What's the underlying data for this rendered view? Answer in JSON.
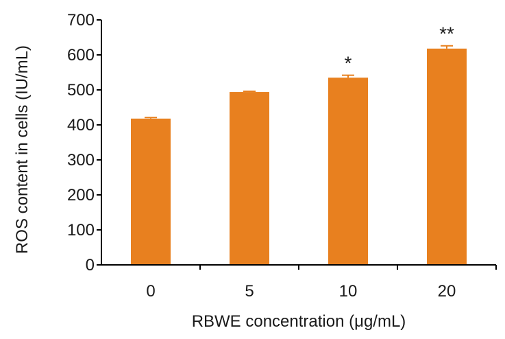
{
  "chart_data": {
    "type": "bar",
    "categories": [
      "0",
      "5",
      "10",
      "20"
    ],
    "values": [
      418,
      494,
      535,
      618
    ],
    "errors": [
      3,
      2,
      7,
      8
    ],
    "significance": [
      "",
      "",
      "*",
      "**"
    ],
    "xlabel": "RBWE concentration (μg/mL)",
    "ylabel": "ROS content in cells (IU/mL)",
    "ylim": [
      0,
      700
    ],
    "yticks": [
      "0",
      "100",
      "200",
      "300",
      "400",
      "500",
      "600",
      "700"
    ],
    "grid": false,
    "bar_color": "#E8801F",
    "axis_color": "#000000"
  }
}
